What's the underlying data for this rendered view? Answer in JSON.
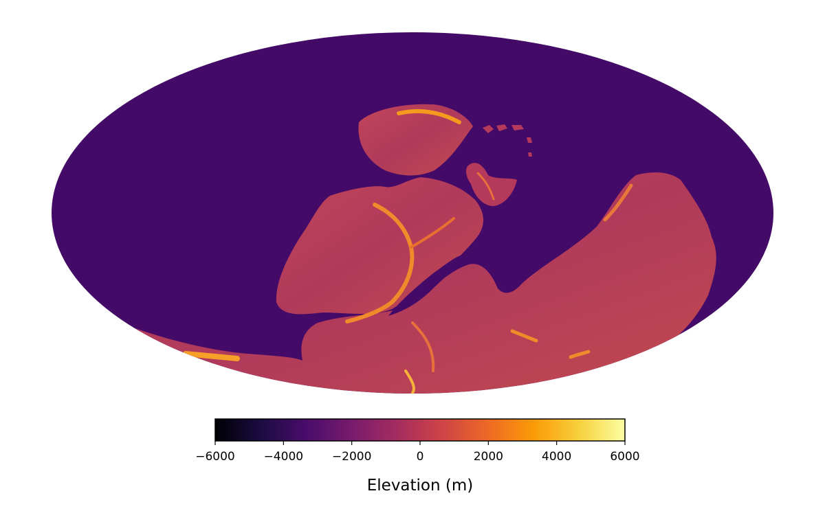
{
  "map": {
    "projection": "mollweide",
    "ocean_color": "#440a68",
    "land_color": "#b5395a"
  },
  "colorbar": {
    "label": "Elevation (m)",
    "colormap": "inferno",
    "range": [
      -6000,
      6000
    ],
    "ticks": [
      -6000,
      -4000,
      -2000,
      0,
      2000,
      4000,
      6000
    ],
    "tick_labels": [
      "−6000",
      "−4000",
      "−2000",
      "0",
      "2000",
      "4000",
      "6000"
    ],
    "stops": [
      "#000004",
      "#1b0c41",
      "#4a0c6b",
      "#781c6d",
      "#a52c60",
      "#cf4446",
      "#ed6925",
      "#fb9b06",
      "#f7d13d",
      "#fcffa4"
    ]
  }
}
